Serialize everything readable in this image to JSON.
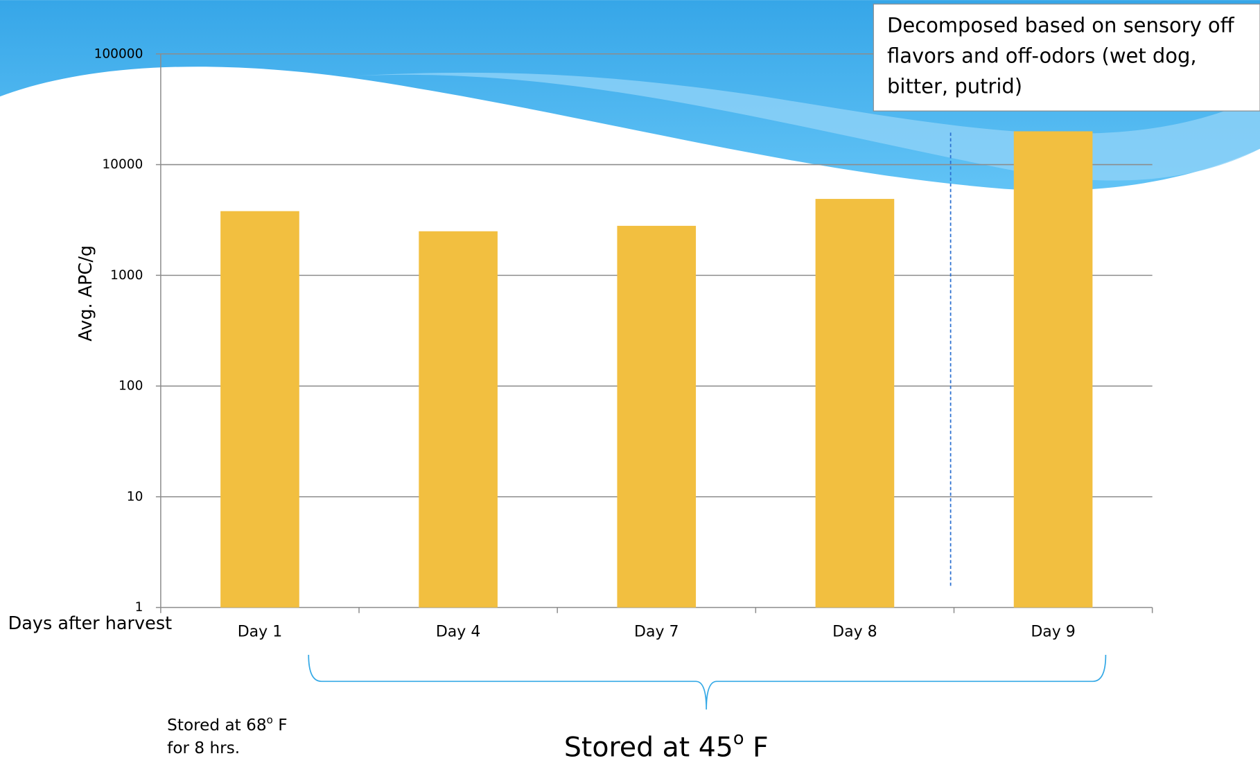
{
  "chart_data": {
    "type": "bar",
    "y_label": "Avg. APC/g",
    "x_label": "Days after harvest",
    "categories": [
      "Day 1",
      "Day 4",
      "Day 7",
      "Day 8",
      "Day 9"
    ],
    "values": [
      3800,
      2500,
      2800,
      4900,
      20000
    ],
    "color": "#f2bf40",
    "ylim": [
      1,
      100000
    ],
    "yticks": [
      1,
      10,
      100,
      1000,
      10000,
      100000
    ],
    "y_scale": "log",
    "grid": true,
    "annotation": "Decomposed based on sensory off flavors and off-odors (wet dog, bitter, putrid)",
    "note_68": {
      "prefix": "Stored at  68",
      "sup": "o",
      "suffix": " F",
      "line2": "for 8 hrs."
    },
    "note_45": {
      "prefix": "Stored at  45",
      "sup": "o",
      "suffix": " F"
    }
  }
}
